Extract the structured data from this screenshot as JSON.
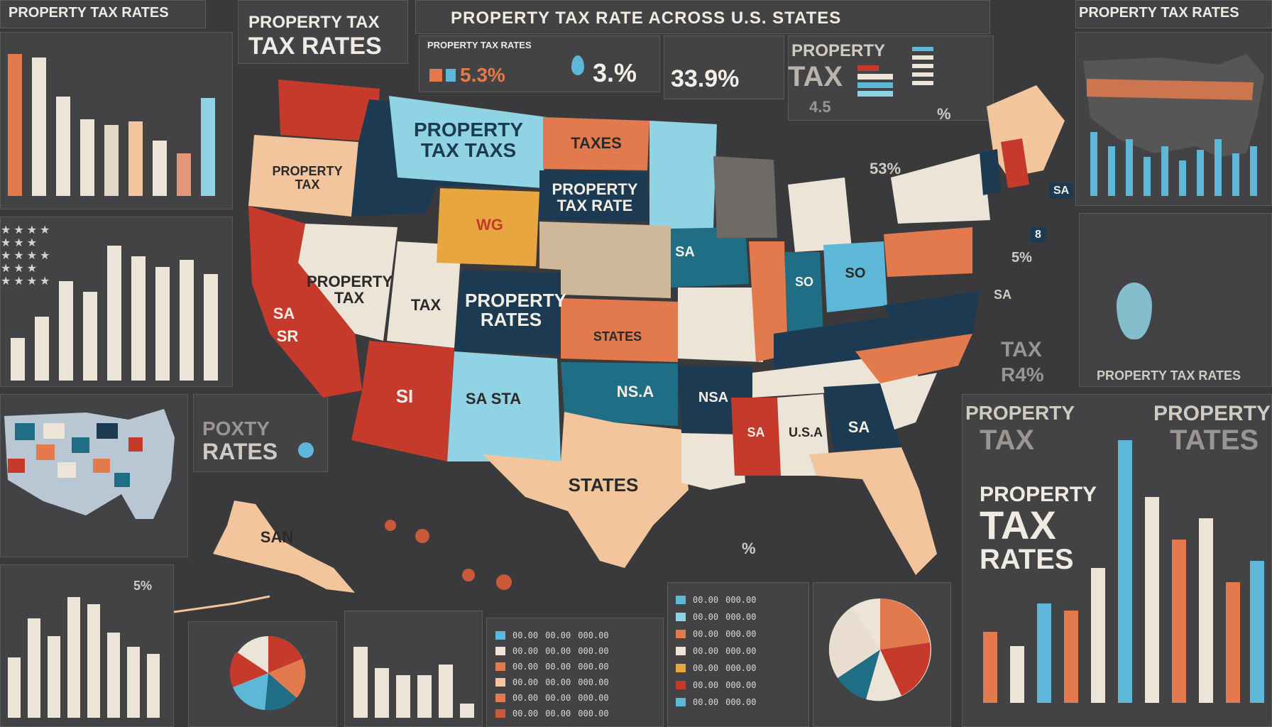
{
  "header": {
    "top_left": "PROPERTY TAX RATES",
    "center": "PROPERTY TAX RATE ACROSS U.S. STATES",
    "top_right": "PROPERTY TAX RATES"
  },
  "left_title": {
    "line1": "PROPERTY TAX",
    "line2": "TAX RATES"
  },
  "stats": {
    "small_label": "PROPERTY TAX RATES",
    "v1": "5.3%",
    "v2": "3.%",
    "v3": "33.9%",
    "right_label1": "PROPERTY",
    "right_label2": "TAX",
    "right_label3": "4.5",
    "right_pct": "%",
    "mid_pct": "53%"
  },
  "map_labels": {
    "wa": "PROPERTY TAX",
    "mt": "PROPERTY TAX TAXS",
    "nd": "TAXES",
    "sd": "PROPERTY TAX RATE",
    "nv": "PROPERTY TAX",
    "ut": "TAX",
    "co": "PROPERTY RATES",
    "ks": "STATES",
    "ca1": "SA",
    "ca2": "SR",
    "az": "SI",
    "nm": "SA STA",
    "ok": "NS.A",
    "ar": "NSA",
    "tx": "STATES",
    "ak": "SAN",
    "ms": "SA",
    "al": "U.S.A",
    "ga": "SA",
    "ne": "SA",
    "oh": "SO",
    "in": "SO",
    "wy": "WG"
  },
  "callouts": [
    "SA",
    "8",
    "5%",
    "SA",
    "53%",
    "5%",
    "%"
  ],
  "side_labels": {
    "porty": "POXTY",
    "rates": "RATES",
    "tax_r": "TAX",
    "r4": "R4%",
    "ptr": "PROPERTY TAX RATES",
    "property": "PROPERTY",
    "tax": "TAX",
    "property2": "PROPERTY",
    "tates": "TATES",
    "big1": "PROPERTY",
    "big2": "TAX",
    "big3": "RATES",
    "ak_pct": "5%"
  },
  "legend_mid": [
    {
      "a": "00.00",
      "b": "00.00",
      "c": "000.00"
    },
    {
      "a": "00.00",
      "b": "00.00",
      "c": "000.00"
    },
    {
      "a": "00.00",
      "b": "00.00",
      "c": "000.00"
    },
    {
      "a": "00.00",
      "b": "00.00",
      "c": "000.00"
    },
    {
      "a": "00.00",
      "b": "00.00",
      "c": "000.00"
    },
    {
      "a": "00.00",
      "b": "00.00",
      "c": "000.00"
    }
  ],
  "legend_right": [
    {
      "a": "00.00",
      "b": "000.00"
    },
    {
      "a": "00.00",
      "b": "000.00"
    },
    {
      "a": "00.00",
      "b": "000.00"
    },
    {
      "a": "00.00",
      "b": "000.00"
    },
    {
      "a": "00.00",
      "b": "000.00"
    },
    {
      "a": "00.00",
      "b": "000.00"
    },
    {
      "a": "00.00",
      "b": "000.00"
    }
  ],
  "colors": {
    "red": "#c63a2c",
    "orange": "#e27a4e",
    "peach": "#f2c59c",
    "cream": "#ece4d6",
    "teal": "#1f6e86",
    "navy": "#1c3a52",
    "sky": "#8fd3e4",
    "light_blue": "#5cb8d6",
    "tan": "#cfb79a",
    "yellow": "#e8a640"
  }
}
